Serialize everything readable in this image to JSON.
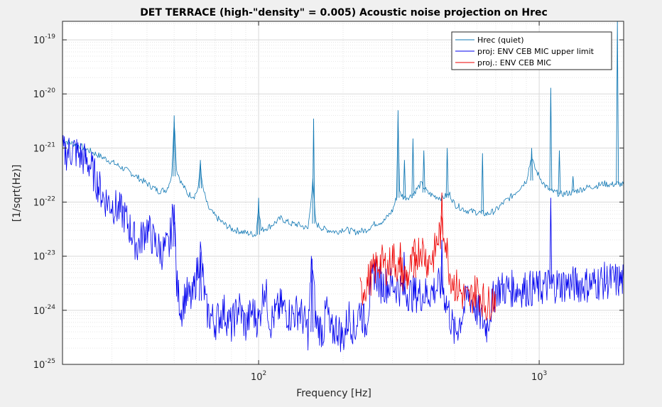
{
  "chart_data": {
    "type": "line",
    "title": "DET TERRACE (high-\"density\" = 0.005) Acoustic noise projection on Hrec",
    "xlabel": "Frequency [Hz]",
    "ylabel": "[1/sqrt(Hz)]",
    "xscale": "log",
    "yscale": "log",
    "xlim": [
      20,
      2000
    ],
    "ylim": [
      1e-25,
      2.2e-19
    ],
    "grid": "major and minor",
    "legend_position": "top-right",
    "x_ticks": [
      {
        "value": 100,
        "label": "10",
        "exp": "2"
      },
      {
        "value": 1000,
        "label": "10",
        "exp": "3"
      }
    ],
    "y_ticks": [
      {
        "value": 1e-25,
        "label": "10",
        "exp": "-25"
      },
      {
        "value": 1e-24,
        "label": "10",
        "exp": "-24"
      },
      {
        "value": 1e-23,
        "label": "10",
        "exp": "-23"
      },
      {
        "value": 1e-22,
        "label": "10",
        "exp": "-22"
      },
      {
        "value": 1e-21,
        "label": "10",
        "exp": "-21"
      },
      {
        "value": 1e-20,
        "label": "10",
        "exp": "-20"
      },
      {
        "value": 1e-19,
        "label": "10",
        "exp": "-19"
      }
    ],
    "series": [
      {
        "name": "Hrec (quiet)",
        "color": "#1178b4",
        "points": [
          [
            20,
            1.4e-21
          ],
          [
            23,
            1.1e-21
          ],
          [
            26,
            8e-22
          ],
          [
            30,
            5.5e-22
          ],
          [
            35,
            3.5e-22
          ],
          [
            40,
            2.2e-22
          ],
          [
            44,
            1.6e-22
          ],
          [
            47,
            1.7e-22
          ],
          [
            49,
            3e-22
          ],
          [
            50,
            3.5e-21
          ],
          [
            51,
            4e-22
          ],
          [
            53,
            2.3e-22
          ],
          [
            56,
            1.4e-22
          ],
          [
            59,
            1.3e-22
          ],
          [
            61,
            1.8e-22
          ],
          [
            62,
            5.5e-22
          ],
          [
            63,
            2e-22
          ],
          [
            66,
            8e-23
          ],
          [
            70,
            5.5e-23
          ],
          [
            75,
            4e-23
          ],
          [
            80,
            3.2e-23
          ],
          [
            90,
            2.7e-23
          ],
          [
            98,
            2.5e-23
          ],
          [
            100,
            9e-23
          ],
          [
            102,
            3e-23
          ],
          [
            110,
            3.6e-23
          ],
          [
            120,
            5e-23
          ],
          [
            130,
            4e-23
          ],
          [
            140,
            3.8e-23
          ],
          [
            150,
            3.2e-23
          ],
          [
            156,
            2.4e-22
          ],
          [
            160,
            4e-23
          ],
          [
            170,
            3.2e-23
          ],
          [
            180,
            3e-23
          ],
          [
            190,
            2.8e-23
          ],
          [
            200,
            3.2e-23
          ],
          [
            220,
            2.8e-23
          ],
          [
            240,
            3e-23
          ],
          [
            260,
            4e-23
          ],
          [
            280,
            4.5e-23
          ],
          [
            300,
            7e-23
          ],
          [
            310,
            1.2e-22
          ],
          [
            314,
            3.5e-21
          ],
          [
            318,
            1.5e-22
          ],
          [
            330,
            1.2e-22
          ],
          [
            350,
            1.3e-22
          ],
          [
            380,
            2.2e-22
          ],
          [
            400,
            1.5e-22
          ],
          [
            420,
            1.3e-22
          ],
          [
            450,
            1.2e-22
          ],
          [
            480,
            1.4e-22
          ],
          [
            500,
            9e-23
          ],
          [
            550,
            7e-23
          ],
          [
            600,
            6.5e-23
          ],
          [
            650,
            6e-23
          ],
          [
            700,
            7e-23
          ],
          [
            750,
            1e-22
          ],
          [
            800,
            1.3e-22
          ],
          [
            850,
            1.8e-22
          ],
          [
            900,
            2.5e-22
          ],
          [
            940,
            7e-22
          ],
          [
            960,
            4.5e-22
          ],
          [
            1000,
            3e-22
          ],
          [
            1050,
            2e-22
          ],
          [
            1100,
            1.6e-22
          ],
          [
            1200,
            1.4e-22
          ],
          [
            1300,
            1.5e-22
          ],
          [
            1400,
            1.7e-22
          ],
          [
            1500,
            1.9e-22
          ],
          [
            1600,
            2e-22
          ],
          [
            1700,
            2.2e-22
          ],
          [
            1800,
            2.1e-22
          ],
          [
            1900,
            2.2e-22
          ],
          [
            2000,
            2.1e-22
          ]
        ],
        "spikes": [
          [
            50,
            4e-21
          ],
          [
            62,
            6e-22
          ],
          [
            100,
            1.2e-22
          ],
          [
            157,
            3.5e-21
          ],
          [
            314,
            5e-21
          ],
          [
            331,
            6e-22
          ],
          [
            355,
            1.5e-21
          ],
          [
            388,
            9e-22
          ],
          [
            470,
            1e-21
          ],
          [
            628,
            8e-22
          ],
          [
            940,
            1e-21
          ],
          [
            1100,
            1.3e-20
          ],
          [
            1180,
            9e-22
          ],
          [
            1320,
            3e-22
          ],
          [
            1900,
            2.2e-19
          ]
        ]
      },
      {
        "name": "proj: ENV CEB MIC upper limit",
        "color": "#0000ee",
        "points": [
          [
            20,
            8e-22
          ],
          [
            22,
            9e-22
          ],
          [
            25,
            5e-22
          ],
          [
            28,
            1.2e-22
          ],
          [
            30,
            9e-23
          ],
          [
            33,
            6e-23
          ],
          [
            35,
            3e-23
          ],
          [
            37,
            1.5e-23
          ],
          [
            40,
            3.5e-23
          ],
          [
            42,
            2e-23
          ],
          [
            45,
            1.2e-23
          ],
          [
            48,
            1.5e-23
          ],
          [
            50,
            9e-23
          ],
          [
            51,
            3e-24
          ],
          [
            53,
            1e-24
          ],
          [
            55,
            2e-24
          ],
          [
            58,
            1.5e-24
          ],
          [
            62,
            1.2e-23
          ],
          [
            65,
            1e-24
          ],
          [
            70,
            6e-25
          ],
          [
            75,
            1e-24
          ],
          [
            80,
            5e-25
          ],
          [
            85,
            1.2e-24
          ],
          [
            90,
            5e-25
          ],
          [
            95,
            1e-24
          ],
          [
            100,
            6e-25
          ],
          [
            105,
            3e-24
          ],
          [
            110,
            6e-25
          ],
          [
            120,
            1.2e-24
          ],
          [
            130,
            8e-25
          ],
          [
            140,
            1e-24
          ],
          [
            150,
            4e-25
          ],
          [
            155,
            9e-24
          ],
          [
            160,
            6e-25
          ],
          [
            170,
            4e-25
          ],
          [
            175,
            1.2e-24
          ],
          [
            180,
            3.5e-25
          ],
          [
            190,
            5e-25
          ],
          [
            200,
            3e-25
          ],
          [
            210,
            8e-25
          ],
          [
            220,
            4e-25
          ],
          [
            230,
            1.2e-24
          ],
          [
            240,
            5e-25
          ],
          [
            250,
            2e-24
          ],
          [
            260,
            6e-24
          ],
          [
            270,
            3e-24
          ],
          [
            300,
            3e-24
          ],
          [
            350,
            2e-24
          ],
          [
            400,
            2e-24
          ],
          [
            450,
            3e-24
          ],
          [
            500,
            3.5e-25
          ],
          [
            530,
            8e-25
          ],
          [
            560,
            2e-24
          ],
          [
            600,
            1e-24
          ],
          [
            650,
            5e-25
          ],
          [
            700,
            2.5e-24
          ],
          [
            800,
            2.5e-24
          ],
          [
            900,
            2.5e-24
          ],
          [
            1000,
            2.5e-24
          ],
          [
            1100,
            3e-24
          ],
          [
            1200,
            3e-24
          ],
          [
            1300,
            3e-24
          ],
          [
            1500,
            3e-24
          ],
          [
            1700,
            3.5e-24
          ],
          [
            1900,
            3.5e-24
          ],
          [
            2000,
            3.5e-24
          ]
        ],
        "spikes": [
          [
            50,
            9e-23
          ],
          [
            62,
            1.2e-23
          ],
          [
            155,
            9e-24
          ],
          [
            330,
            1.2e-23
          ],
          [
            450,
            2e-23
          ],
          [
            1100,
            1.2e-22
          ]
        ]
      },
      {
        "name": "proj.: ENV CEB MIC",
        "color": "#ee0000",
        "points": [
          [
            230,
            2e-24
          ],
          [
            250,
            4e-24
          ],
          [
            270,
            8e-24
          ],
          [
            290,
            6e-24
          ],
          [
            300,
            1e-23
          ],
          [
            320,
            5e-24
          ],
          [
            340,
            4e-24
          ],
          [
            360,
            1e-23
          ],
          [
            380,
            1.5e-23
          ],
          [
            400,
            8e-24
          ],
          [
            420,
            1e-23
          ],
          [
            440,
            2.5e-23
          ],
          [
            460,
            3e-23
          ],
          [
            480,
            5e-24
          ],
          [
            500,
            3e-24
          ],
          [
            530,
            2e-24
          ],
          [
            560,
            1.5e-24
          ],
          [
            600,
            2.5e-24
          ],
          [
            650,
            1.2e-24
          ],
          [
            700,
            2e-24
          ]
        ],
        "spikes": [
          [
            450,
            1.5e-22
          ],
          [
            360,
            1.2e-23
          ],
          [
            320,
            1.8e-23
          ]
        ]
      }
    ]
  }
}
